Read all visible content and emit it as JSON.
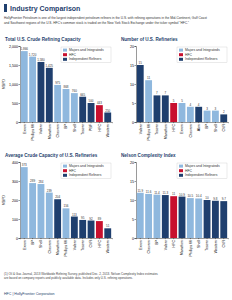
{
  "header": {
    "title": "Industry Comparison"
  },
  "intro": [
    "HollyFrontier Petroleum is one of the largest independent petroleum refiners in the U.S. with refining operations in the Mid-Continent, Gulf Coast",
    "and Southwest regions of the U.S. HFC's common stock is traded on the New York Stock Exchange under the ticker symbol \"HFC.\""
  ],
  "chart_data": [
    {
      "type": "bar",
      "title": "Total U.S. Crude Refining Capacity",
      "y_label": "MBPD",
      "categories": [
        "Exxon",
        "Phillips 66",
        "Valero",
        "Marathon",
        "Chevron",
        "BP",
        "Shell",
        "Tesoro",
        "PBF",
        "HFC",
        "Western"
      ],
      "series": [
        {
          "name": "Majors and Integrateds",
          "color": "#8fb8de",
          "values": [
            1866,
            1720,
            null,
            null,
            975,
            868,
            760,
            null,
            null,
            null,
            null
          ],
          "value_labels": [
            "1,866",
            "1,720",
            null,
            null,
            "975",
            "868",
            "760",
            null,
            null,
            null,
            null
          ]
        },
        {
          "name": "HFC",
          "color": "#c8102e",
          "values": [
            null,
            null,
            null,
            null,
            null,
            null,
            null,
            null,
            null,
            443,
            null
          ],
          "value_labels": [
            null,
            null,
            null,
            null,
            null,
            null,
            null,
            null,
            null,
            "443",
            null
          ]
        },
        {
          "name": "Independent Refiners",
          "color": "#1f3f6e",
          "values": [
            null,
            null,
            1580,
            1425,
            null,
            null,
            null,
            665,
            500,
            null,
            250
          ],
          "value_labels": [
            null,
            null,
            "1,580",
            "1,425",
            null,
            null,
            null,
            "665",
            "500",
            null,
            "250"
          ]
        }
      ],
      "ylim": [
        0,
        2000
      ],
      "yticks": [
        0,
        500,
        {
          "value": 1000,
          "label": "1,000"
        },
        {
          "value": 1500,
          "label": "1,500"
        },
        {
          "value": 2000,
          "label": "2,000"
        }
      ],
      "data_labels": true,
      "legend": "upper right"
    },
    {
      "type": "bar",
      "title": "Number of U.S. Refineries",
      "categories": [
        "Valero",
        "Phillips 66",
        "Tesoro",
        "Marathon",
        "HFC",
        "Exxon",
        "Chevron",
        "Alon",
        "BP",
        "Shell",
        "CVR"
      ],
      "series": [
        {
          "name": "Majors and Integrateds",
          "color": "#8fb8de",
          "values": [
            null,
            11,
            null,
            null,
            null,
            5,
            4,
            null,
            3,
            3,
            null
          ]
        },
        {
          "name": "HFC",
          "color": "#c8102e",
          "values": [
            null,
            null,
            null,
            null,
            5,
            null,
            null,
            null,
            null,
            null,
            null
          ]
        },
        {
          "name": "Independent Refiners",
          "color": "#1f3f6e",
          "values": [
            15,
            null,
            7,
            7,
            null,
            null,
            null,
            4,
            null,
            null,
            2
          ]
        }
      ],
      "ylim": [
        0,
        20
      ],
      "yticks": [
        0,
        5,
        10,
        15,
        20
      ],
      "data_labels": true,
      "legend": "upper right"
    },
    {
      "type": "bar",
      "title": "Average Crude Capacity of U.S. Refineries",
      "y_label": "MBPD",
      "categories": [
        "Exxon",
        "BP",
        "Shell",
        "Chevron",
        "Marathon",
        "Phillips 66",
        "Valero",
        "Tesoro",
        "CVR",
        "HFC",
        "Western"
      ],
      "series": [
        {
          "name": "Majors and Integrateds",
          "color": "#8fb8de",
          "values": [
            373,
            289,
            284,
            239,
            null,
            156,
            null,
            null,
            null,
            null,
            null
          ]
        },
        {
          "name": "HFC",
          "color": "#c8102e",
          "values": [
            null,
            null,
            null,
            null,
            null,
            null,
            null,
            null,
            null,
            89,
            null
          ]
        },
        {
          "name": "Independent Refiners",
          "color": "#1f3f6e",
          "values": [
            null,
            null,
            null,
            null,
            204,
            null,
            113,
            95,
            92,
            null,
            51
          ]
        }
      ],
      "ylim": [
        0,
        400
      ],
      "yticks": [
        0,
        100,
        200,
        300,
        400
      ],
      "data_labels": true,
      "legend": "upper right"
    },
    {
      "type": "bar",
      "title": "Nelson Complexity Index",
      "categories": [
        "Exxon",
        "Chevron",
        "BP",
        "Valero",
        "HFC",
        "Marathon",
        "Phillips 66",
        "Shell",
        "Tesoro",
        "Western",
        "CVR"
      ],
      "series": [
        {
          "name": "Majors and Integrateds",
          "color": "#8fb8de",
          "values": [
            11.9,
            11.6,
            11.4,
            null,
            null,
            null,
            10.5,
            10.4,
            null,
            null,
            null
          ]
        },
        {
          "name": "HFC",
          "color": "#c8102e",
          "values": [
            null,
            null,
            null,
            null,
            11.0,
            null,
            null,
            null,
            null,
            null,
            null
          ]
        },
        {
          "name": "Independent Refiners",
          "color": "#1f3f6e",
          "values": [
            null,
            null,
            null,
            11.3,
            null,
            10.9,
            null,
            null,
            10.0,
            9.8,
            9.7
          ]
        }
      ],
      "ylim": [
        0,
        20
      ],
      "yticks": [
        0,
        5,
        10,
        15,
        20
      ],
      "data_labels": true,
      "legend": "upper right"
    }
  ],
  "footnotes": [
    "(1) Oil & Gas Journal, 2013 Worldwide Refining Survey, published Dec. 2, 2013. Nelson Complexity Index estimates",
    "are based on company reports and publicly available data. Includes only U.S. refining operations."
  ],
  "footer": "HFC | HollyFrontier Corporation"
}
